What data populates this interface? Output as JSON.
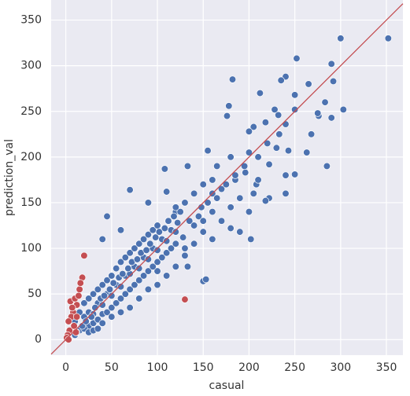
{
  "chart_data": {
    "type": "scatter",
    "xlabel": "casual",
    "ylabel": "prediction_val",
    "xlim": [
      -16,
      368
    ],
    "ylim": [
      -17,
      372
    ],
    "xticks": [
      0,
      50,
      100,
      150,
      200,
      250,
      300,
      350
    ],
    "yticks": [
      0,
      50,
      100,
      150,
      200,
      250,
      300,
      350
    ],
    "grid": true,
    "diagonal": true,
    "diagonal_color": "#c44e52",
    "series": [
      {
        "color": "#4c72b0",
        "x": [
          352,
          300,
          252,
          290,
          182,
          240,
          235,
          265,
          292,
          250,
          212,
          283,
          178,
          228,
          303,
          250,
          276,
          275,
          290,
          232,
          176,
          205,
          200,
          218,
          240,
          233,
          268,
          155,
          200,
          230,
          180,
          243,
          222,
          285,
          263,
          108,
          133,
          250,
          240,
          196,
          165,
          185,
          208,
          70,
          110,
          160,
          240,
          222,
          205,
          218,
          90,
          148,
          120,
          180,
          150,
          190,
          202,
          160,
          130,
          133,
          150,
          153,
          100,
          40,
          45,
          60,
          135,
          20,
          25,
          30,
          35,
          40,
          45,
          50,
          55,
          60,
          65,
          70,
          75,
          80,
          85,
          90,
          95,
          100,
          105,
          110,
          115,
          120,
          25,
          30,
          35,
          40,
          45,
          50,
          55,
          60,
          65,
          70,
          75,
          80,
          85,
          90,
          95,
          100,
          105,
          110,
          115,
          120,
          10,
          15,
          20,
          25,
          30,
          35,
          40,
          45,
          50,
          55,
          60,
          65,
          70,
          75,
          80,
          85,
          90,
          95,
          100,
          15,
          20,
          25,
          30,
          35,
          40,
          50,
          60,
          70,
          80,
          90,
          100,
          110,
          120,
          10,
          12,
          18,
          22,
          28,
          32,
          38,
          42,
          48,
          52,
          58,
          62,
          68,
          72,
          78,
          82,
          88,
          92,
          98,
          102,
          108,
          112,
          118,
          122,
          125,
          128,
          130,
          140,
          140,
          145,
          150,
          155,
          160,
          165,
          170,
          175,
          185,
          195,
          210,
          220,
          170,
          180,
          190,
          200,
          210,
          160,
          150,
          140,
          130,
          120
        ],
        "y": [
          330,
          330,
          308,
          302,
          285,
          288,
          284,
          280,
          283,
          268,
          270,
          260,
          256,
          252,
          252,
          252,
          245,
          248,
          243,
          246,
          245,
          233,
          228,
          238,
          236,
          225,
          225,
          207,
          205,
          210,
          200,
          207,
          192,
          190,
          205,
          187,
          190,
          181,
          180,
          183,
          190,
          175,
          170,
          164,
          162,
          160,
          160,
          155,
          160,
          152,
          150,
          145,
          140,
          122,
          118,
          118,
          110,
          110,
          92,
          80,
          64,
          66,
          75,
          110,
          135,
          120,
          130,
          25,
          30,
          28,
          40,
          38,
          50,
          48,
          60,
          58,
          70,
          72,
          80,
          78,
          90,
          88,
          100,
          98,
          110,
          108,
          120,
          118,
          15,
          18,
          22,
          28,
          30,
          35,
          40,
          45,
          50,
          55,
          60,
          65,
          70,
          75,
          80,
          85,
          90,
          95,
          100,
          105,
          20,
          30,
          40,
          45,
          50,
          55,
          60,
          65,
          70,
          78,
          85,
          90,
          95,
          100,
          105,
          110,
          115,
          120,
          125,
          10,
          12,
          8,
          10,
          12,
          18,
          25,
          30,
          35,
          45,
          55,
          60,
          70,
          80,
          5,
          8,
          15,
          20,
          25,
          35,
          45,
          48,
          55,
          62,
          68,
          72,
          78,
          85,
          88,
          95,
          98,
          105,
          112,
          118,
          122,
          130,
          135,
          128,
          140,
          112,
          100,
          125,
          105,
          135,
          130,
          150,
          140,
          155,
          165,
          170,
          180,
          190,
          200,
          215,
          130,
          145,
          155,
          140,
          175,
          175,
          170,
          160,
          150,
          145
        ]
      },
      {
        "color": "#c44e52",
        "x": [
          5,
          10,
          12,
          15,
          18,
          16,
          20,
          8,
          6,
          3,
          4,
          2,
          1,
          9,
          12,
          130,
          14,
          7,
          11,
          3
        ],
        "y": [
          42,
          45,
          38,
          55,
          68,
          62,
          92,
          30,
          25,
          20,
          10,
          5,
          2,
          15,
          25,
          44,
          48,
          35,
          8,
          0
        ]
      }
    ]
  }
}
